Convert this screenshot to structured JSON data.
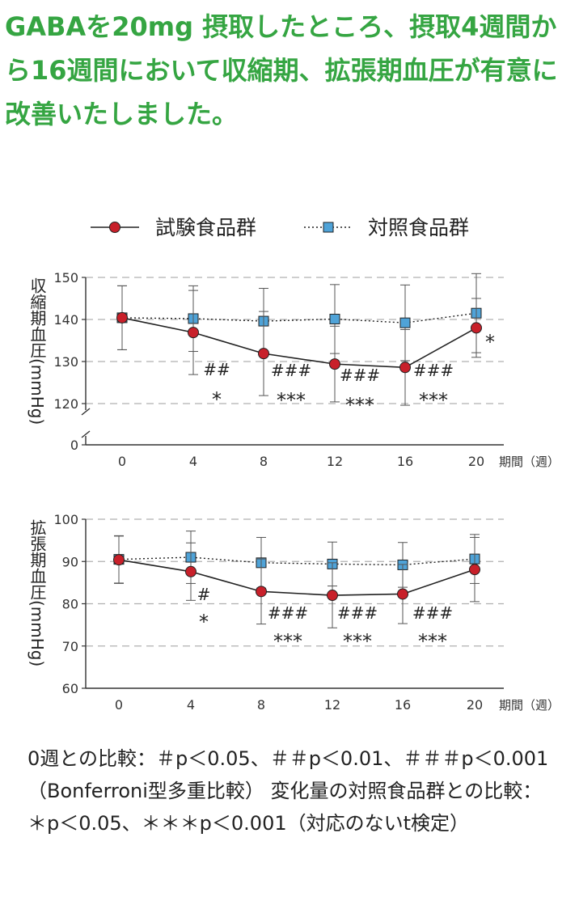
{
  "headline": "GABAを20mg 摂取したところ、摂取4週間から16週間において収縮期、拡張期血圧が有意に改善いたしました。",
  "legend": {
    "test_label": "試験食品群",
    "control_label": "対照食品群"
  },
  "colors": {
    "headline": "#35a542",
    "test_series": "#c8202a",
    "control_series": "#4fa3d8",
    "axis": "#333333",
    "grid": "#b0b0b0"
  },
  "chart_data": [
    {
      "type": "line",
      "ylabel": "収縮期血圧(mmHg)",
      "xlabel": "期間（週）",
      "x": [
        0,
        4,
        8,
        12,
        16,
        20
      ],
      "ylim": [
        0,
        150
      ],
      "yticks": [
        0,
        120,
        130,
        140,
        150
      ],
      "axis_break": true,
      "grid": "dashed horizontal at 120, 130, 140, 150",
      "series": [
        {
          "name": "試験食品群",
          "marker": "circle",
          "linestyle": "solid",
          "values": [
            140.4,
            136.9,
            131.9,
            129.4,
            128.6,
            138.0
          ],
          "error": [
            7.6,
            10.0,
            10.0,
            9.0,
            9.0,
            7.0
          ]
        },
        {
          "name": "対照食品群",
          "marker": "square",
          "linestyle": "dotted",
          "values": [
            140.4,
            140.2,
            139.6,
            140.1,
            139.2,
            141.5
          ],
          "error": [
            7.6,
            7.8,
            7.8,
            8.2,
            9.0,
            9.4
          ]
        }
      ],
      "annotations": [
        {
          "x": 4,
          "hash": "##",
          "star": "*"
        },
        {
          "x": 8,
          "hash": "###",
          "star": "***"
        },
        {
          "x": 12,
          "hash": "###",
          "star": "***"
        },
        {
          "x": 16,
          "hash": "###",
          "star": "***"
        },
        {
          "x": 20,
          "hash": "",
          "star": "*"
        }
      ]
    },
    {
      "type": "line",
      "ylabel": "拡張期血圧(mmHg)",
      "xlabel": "期間（週）",
      "x": [
        0,
        4,
        8,
        12,
        16,
        20
      ],
      "ylim": [
        60,
        100
      ],
      "yticks": [
        60,
        70,
        80,
        90,
        100
      ],
      "grid": "dashed horizontal at 70, 80, 90, 100",
      "series": [
        {
          "name": "試験食品群",
          "marker": "circle",
          "linestyle": "solid",
          "values": [
            90.4,
            87.6,
            82.9,
            82.0,
            82.3,
            88.1
          ],
          "error": [
            5.6,
            6.8,
            7.7,
            7.7,
            7.0,
            7.6
          ]
        },
        {
          "name": "対照食品群",
          "marker": "square",
          "linestyle": "dotted",
          "values": [
            90.5,
            91.0,
            89.7,
            89.4,
            89.2,
            90.6
          ],
          "error": [
            5.6,
            6.2,
            6.0,
            5.2,
            5.3,
            5.8
          ]
        }
      ],
      "annotations": [
        {
          "x": 4,
          "hash": "#",
          "star": "*"
        },
        {
          "x": 8,
          "hash": "###",
          "star": "***"
        },
        {
          "x": 12,
          "hash": "###",
          "star": "***"
        },
        {
          "x": 16,
          "hash": "###",
          "star": "***"
        }
      ]
    }
  ],
  "footnote": "0週との比較：＃p＜0.05、＃＃p＜0.01、＃＃＃p＜0.001（Bonferroni型多重比較） 変化量の対照食品群との比較：＊p＜0.05、＊＊＊p＜0.001（対応のないt検定）"
}
